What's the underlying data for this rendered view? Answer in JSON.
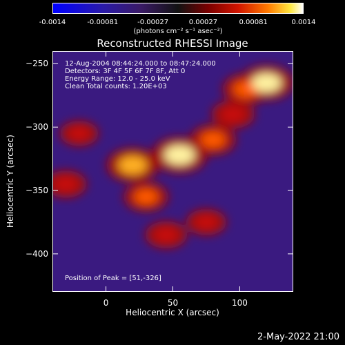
{
  "colorbar": {
    "ticks": [
      "-0.0014",
      "-0.00081",
      "-0.00027",
      "0.00027",
      "0.00081",
      "0.0014"
    ],
    "unit": "(photons cm⁻² s⁻¹ asec⁻²)"
  },
  "chart_data": {
    "type": "heatmap",
    "title": "Reconstructed RHESSI Image",
    "xlabel": "Heliocentric X (arcsec)",
    "ylabel": "Heliocentric Y (arcsec)",
    "xlim": [
      -40,
      140
    ],
    "ylim": [
      -430,
      -240
    ],
    "xticks": [
      "0",
      "50",
      "100"
    ],
    "xtick_values": [
      0,
      50,
      100
    ],
    "yticks": [
      "-250",
      "-300",
      "-350",
      "-400"
    ],
    "ytick_values": [
      -250,
      -300,
      -350,
      -400
    ],
    "color_range": [
      -0.0014,
      0.0014
    ],
    "colormap": "blue-purple-red-yellow-white",
    "peak": [
      51,
      -326
    ],
    "hot_regions": [
      {
        "x": 20,
        "y": -330,
        "level": 0.9
      },
      {
        "x": 55,
        "y": -322,
        "level": 1.0
      },
      {
        "x": 80,
        "y": -310,
        "level": 0.7
      },
      {
        "x": 105,
        "y": -270,
        "level": 0.75
      },
      {
        "x": 120,
        "y": -265,
        "level": 0.95
      },
      {
        "x": 30,
        "y": -355,
        "level": 0.65
      },
      {
        "x": 45,
        "y": -385,
        "level": 0.55
      },
      {
        "x": 75,
        "y": -375,
        "level": 0.5
      },
      {
        "x": 95,
        "y": -290,
        "level": 0.6
      },
      {
        "x": -20,
        "y": -305,
        "level": 0.45
      },
      {
        "x": -30,
        "y": -345,
        "level": 0.55
      }
    ]
  },
  "annotations": [
    "12-Aug-2004 08:44:24.000 to 08:47:24.000",
    "Detectors: 3F 4F 5F 6F 7F 8F, Att 0",
    "Energy Range: 12.0 - 25.0 keV",
    "Clean     Total counts: 1.20E+03"
  ],
  "peak_label": "Position of Peak = [51,-326]",
  "timestamp": "2-May-2022 21:00"
}
